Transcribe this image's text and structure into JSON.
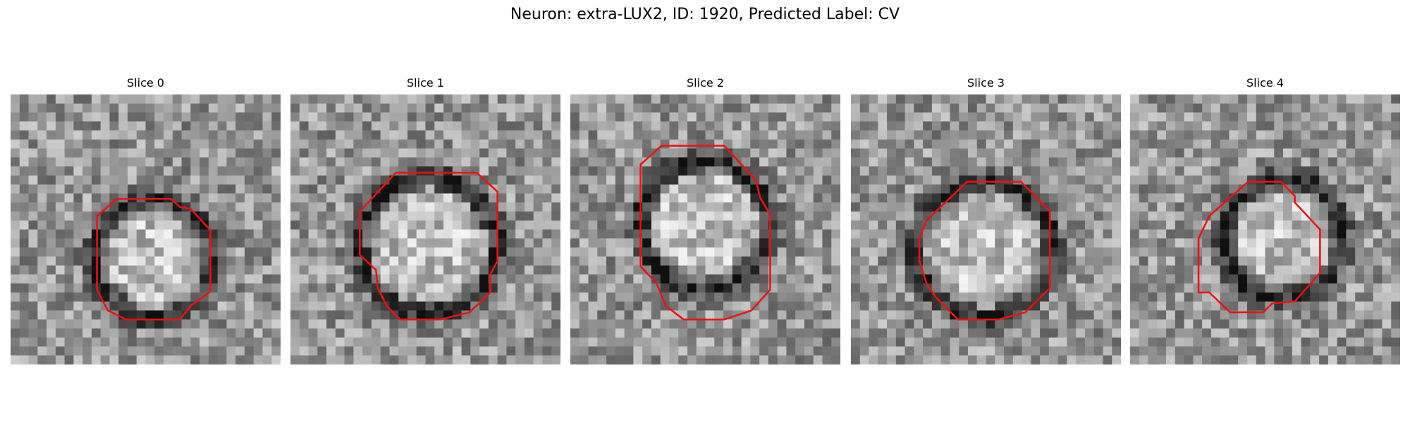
{
  "header": {
    "title": "Neuron: extra-LUX2, ID: 1920, Predicted Label: CV"
  },
  "panels": [
    {
      "title": "Slice 0"
    },
    {
      "title": "Slice 1"
    },
    {
      "title": "Slice 2"
    },
    {
      "title": "Slice 3"
    },
    {
      "title": "Slice 4"
    }
  ]
}
